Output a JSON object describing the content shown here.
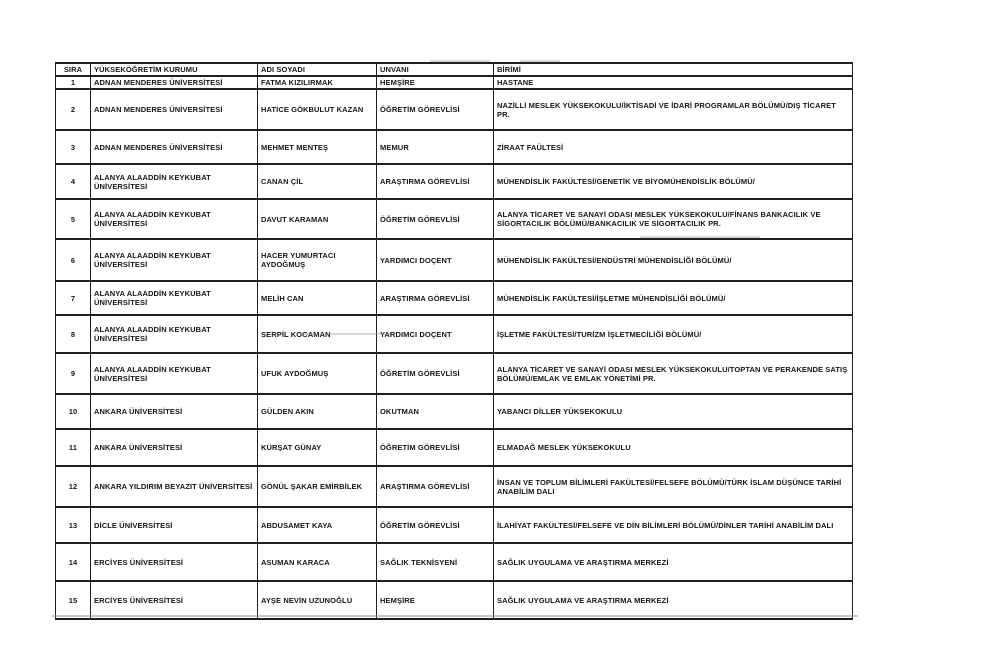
{
  "table": {
    "headers": [
      "SIRA",
      "YÜKSEKÖĞRETİM KURUMU",
      "ADI SOYADI",
      "UNVANI",
      "BİRİMİ"
    ],
    "rows": [
      {
        "sira": "1",
        "kurum": "ADNAN MENDERES ÜNİVERSİTESİ",
        "ad": "FATMA KIZILIRMAK",
        "unvan": "HEMŞİRE",
        "birim": "HASTANE"
      },
      {
        "sira": "2",
        "kurum": "ADNAN MENDERES ÜNİVERSİTESİ",
        "ad": "HATİCE GÖKBULUT KAZAN",
        "unvan": "ÖĞRETİM GÖREVLİSİ",
        "birim": "NAZİLLİ MESLEK YÜKSEKOKULU/İKTİSADİ VE İDARİ PROGRAMLAR BÖLÜMÜ/DIŞ TİCARET PR."
      },
      {
        "sira": "3",
        "kurum": "ADNAN MENDERES ÜNİVERSİTESİ",
        "ad": "MEHMET MENTEŞ",
        "unvan": "MEMUR",
        "birim": "ZİRAAT FAÜLTESİ"
      },
      {
        "sira": "4",
        "kurum": "ALANYA ALAADDİN KEYKUBAT ÜNİVERSİTESİ",
        "ad": "CANAN ÇİL",
        "unvan": "ARAŞTIRMA GÖREVLİSİ",
        "birim": "MÜHENDİSLİK FAKÜLTESİ/GENETİK VE BİYOMÜHENDİSLİK BÖLÜMÜ/"
      },
      {
        "sira": "5",
        "kurum": "ALANYA ALAADDİN KEYKUBAT ÜNİVERSİTESİ",
        "ad": "DAVUT KARAMAN",
        "unvan": "ÖĞRETİM GÖREVLİSİ",
        "birim": "ALANYA TİCARET VE SANAYİ ODASI MESLEK YÜKSEKOKULU/FİNANS BANKACILIK VE SİGORTACILIK BÖLÜMÜ/BANKACILIK VE SİGORTACILIK PR."
      },
      {
        "sira": "6",
        "kurum": "ALANYA ALAADDİN KEYKUBAT ÜNİVERSİTESİ",
        "ad": "HACER YUMURTACI AYDOĞMUŞ",
        "unvan": "YARDIMCI DOÇENT",
        "birim": "MÜHENDİSLİK FAKÜLTESİ/ENDÜSTRİ MÜHENDİSLİĞİ BÖLÜMÜ/"
      },
      {
        "sira": "7",
        "kurum": "ALANYA ALAADDİN KEYKUBAT ÜNİVERSİTESİ",
        "ad": "MELİH CAN",
        "unvan": "ARAŞTIRMA GÖREVLİSİ",
        "birim": "MÜHENDİSLİK FAKÜLTESİ/İŞLETME MÜHENDİSLİĞİ BÖLÜMÜ/"
      },
      {
        "sira": "8",
        "kurum": "ALANYA ALAADDİN KEYKUBAT ÜNİVERSİTESİ",
        "ad": "SERPİL KOCAMAN",
        "unvan": "YARDIMCI DOÇENT",
        "birim": "İŞLETME FAKÜLTESİ/TURİZM İŞLETMECİLİĞİ BÖLÜMÜ/"
      },
      {
        "sira": "9",
        "kurum": "ALANYA ALAADDİN KEYKUBAT ÜNİVERSİTESİ",
        "ad": "UFUK AYDOĞMUŞ",
        "unvan": "ÖĞRETİM GÖREVLİSİ",
        "birim": "ALANYA TİCARET VE SANAYİ ODASI MESLEK YÜKSEKOKULU/TOPTAN VE PERAKENDE SATIŞ BÖLÜMÜ/EMLAK VE EMLAK YÖNETİMİ PR."
      },
      {
        "sira": "10",
        "kurum": "ANKARA ÜNİVERSİTESİ",
        "ad": "GÜLDEN AKIN",
        "unvan": "OKUTMAN",
        "birim": "YABANCI DİLLER YÜKSEKOKULU"
      },
      {
        "sira": "11",
        "kurum": "ANKARA ÜNİVERSİTESİ",
        "ad": "KÜRŞAT GÜNAY",
        "unvan": "ÖĞRETİM GÖREVLİSİ",
        "birim": "ELMADAĞ MESLEK YÜKSEKOKULU"
      },
      {
        "sira": "12",
        "kurum": "ANKARA YILDIRIM BEYAZIT ÜNİVERSİTESİ",
        "ad": "GÖNÜL ŞAKAR EMİRBİLEK",
        "unvan": "ARAŞTIRMA GÖREVLİSİ",
        "birim": "İNSAN VE TOPLUM BİLİMLERİ FAKÜLTESİ/FELSEFE BÖLÜMÜ/TÜRK İSLAM DÜŞÜNCE TARİHİ ANABİLİM DALI"
      },
      {
        "sira": "13",
        "kurum": "DİCLE ÜNİVERSİTESİ",
        "ad": "ABDUSAMET KAYA",
        "unvan": "ÖĞRETİM GÖREVLİSİ",
        "birim": "İLAHİYAT FAKÜLTESİ/FELSEFE VE DİN BİLİMLERİ BÖLÜMÜ/DİNLER TARİHİ ANABİLİM DALI"
      },
      {
        "sira": "14",
        "kurum": "ERCİYES ÜNİVERSİTESİ",
        "ad": "ASUMAN KARACA",
        "unvan": "SAĞLIK TEKNİSYENİ",
        "birim": "SAĞLIK UYGULAMA VE ARAŞTIRMA MERKEZİ"
      },
      {
        "sira": "15",
        "kurum": "ERCİYES ÜNİVERSİTESİ",
        "ad": "AYŞE NEVİN UZUNOĞLU",
        "unvan": "HEMŞİRE",
        "birim": "SAĞLIK UYGULAMA VE ARAŞTIRMA MERKEZİ"
      }
    ]
  }
}
